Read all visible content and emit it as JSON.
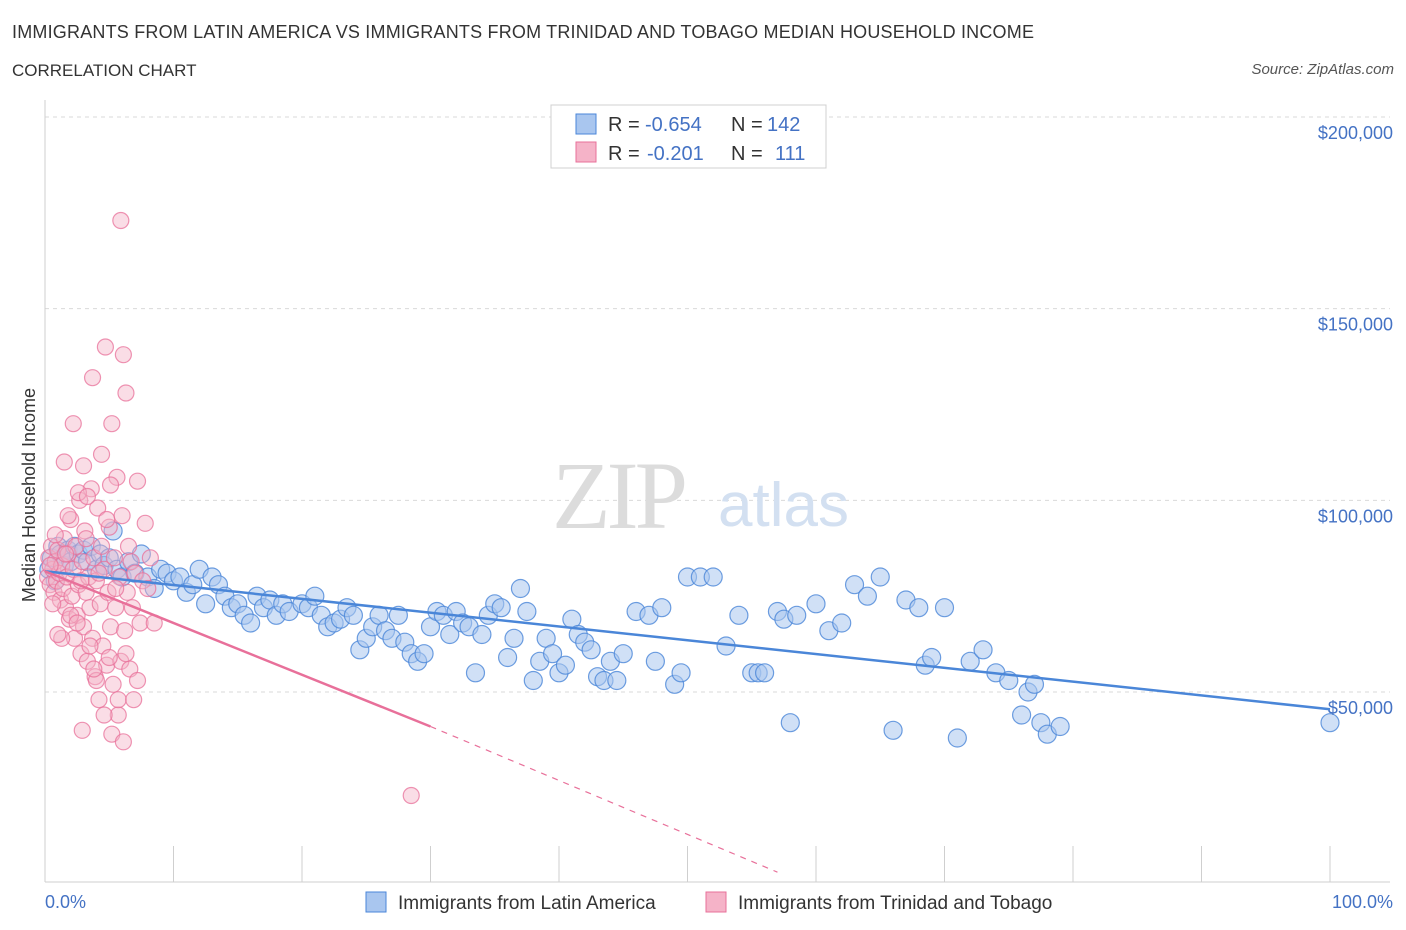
{
  "header": {
    "title": "IMMIGRANTS FROM LATIN AMERICA VS IMMIGRANTS FROM TRINIDAD AND TOBAGO MEDIAN HOUSEHOLD INCOME",
    "subtitle": "CORRELATION CHART",
    "source": "Source: ZipAtlas.com"
  },
  "watermark": {
    "zip": "ZIP",
    "atlas": "atlas"
  },
  "colors": {
    "blue": "#4a86d8",
    "blue_fill": "#a9c6ef",
    "pink": "#e8709a",
    "pink_fill": "#f5b3c8",
    "axis_text": "#4472c4",
    "grid": "#d9d9d9"
  },
  "legend": {
    "rows": [
      {
        "r_label": "R = ",
        "r_value": "-0.654",
        "n_label": "N = ",
        "n_value": "142"
      },
      {
        "r_label": "R = ",
        "r_value": "-0.201",
        "n_label": "N = ",
        "n_value": "111"
      }
    ]
  },
  "chart_data": {
    "type": "scatter",
    "title": "IMMIGRANTS FROM LATIN AMERICA VS IMMIGRANTS FROM TRINIDAD AND TOBAGO MEDIAN HOUSEHOLD INCOME",
    "xlabel": "",
    "ylabel": "Median Household Income",
    "xlim": [
      0,
      100
    ],
    "ylim": [
      0,
      200000
    ],
    "x_tick_labels": [
      "0.0%",
      "100.0%"
    ],
    "y_ticks": [
      50000,
      100000,
      150000,
      200000
    ],
    "y_tick_labels": [
      "$50,000",
      "$100,000",
      "$150,000",
      "$200,000"
    ],
    "grid": "horizontal dashed",
    "legend_position": "top-center",
    "series": [
      {
        "name": "Immigrants from Latin America",
        "color": "#4a86d8",
        "trend": {
          "x": [
            0,
            100
          ],
          "y": [
            81500,
            45500
          ],
          "style": "solid"
        },
        "points": [
          [
            0.3,
            82000
          ],
          [
            0.5,
            85000
          ],
          [
            0.8,
            79000
          ],
          [
            1.0,
            88000
          ],
          [
            1.2,
            86000
          ],
          [
            1.5,
            83000
          ],
          [
            1.8,
            87000
          ],
          [
            2.0,
            84000
          ],
          [
            2.3,
            88000
          ],
          [
            2.6,
            86000
          ],
          [
            3.0,
            87000
          ],
          [
            3.3,
            84000
          ],
          [
            3.6,
            88000
          ],
          [
            4.0,
            82000
          ],
          [
            4.3,
            86000
          ],
          [
            4.6,
            83000
          ],
          [
            5.0,
            85000
          ],
          [
            5.3,
            92000
          ],
          [
            5.6,
            82000
          ],
          [
            6.0,
            80000
          ],
          [
            6.5,
            84000
          ],
          [
            7.0,
            81000
          ],
          [
            7.5,
            86000
          ],
          [
            8.0,
            80000
          ],
          [
            8.5,
            77000
          ],
          [
            9.0,
            82000
          ],
          [
            9.5,
            81000
          ],
          [
            10.0,
            79000
          ],
          [
            10.5,
            80000
          ],
          [
            11.0,
            76000
          ],
          [
            11.5,
            78000
          ],
          [
            12.0,
            82000
          ],
          [
            12.5,
            73000
          ],
          [
            13.0,
            80000
          ],
          [
            13.5,
            78000
          ],
          [
            14.0,
            75000
          ],
          [
            14.5,
            72000
          ],
          [
            15.0,
            73000
          ],
          [
            15.5,
            70000
          ],
          [
            16.0,
            68000
          ],
          [
            16.5,
            75000
          ],
          [
            17.0,
            72000
          ],
          [
            17.5,
            74000
          ],
          [
            18.0,
            70000
          ],
          [
            18.5,
            73000
          ],
          [
            19.0,
            71000
          ],
          [
            20.0,
            73000
          ],
          [
            20.5,
            72000
          ],
          [
            21.0,
            75000
          ],
          [
            21.5,
            70000
          ],
          [
            22.0,
            67000
          ],
          [
            22.5,
            68000
          ],
          [
            23.0,
            69000
          ],
          [
            23.5,
            72000
          ],
          [
            24.0,
            70000
          ],
          [
            24.5,
            61000
          ],
          [
            25.0,
            64000
          ],
          [
            25.5,
            67000
          ],
          [
            26.0,
            70000
          ],
          [
            26.5,
            66000
          ],
          [
            27.0,
            64000
          ],
          [
            27.5,
            70000
          ],
          [
            28.0,
            63000
          ],
          [
            28.5,
            60000
          ],
          [
            29.0,
            58000
          ],
          [
            29.5,
            60000
          ],
          [
            30.0,
            67000
          ],
          [
            30.5,
            71000
          ],
          [
            31.0,
            70000
          ],
          [
            31.5,
            65000
          ],
          [
            32.0,
            71000
          ],
          [
            32.5,
            68000
          ],
          [
            33.0,
            67000
          ],
          [
            33.5,
            55000
          ],
          [
            34.0,
            65000
          ],
          [
            34.5,
            70000
          ],
          [
            35.0,
            73000
          ],
          [
            35.5,
            72000
          ],
          [
            36.0,
            59000
          ],
          [
            36.5,
            64000
          ],
          [
            37.0,
            77000
          ],
          [
            37.5,
            71000
          ],
          [
            38.0,
            53000
          ],
          [
            38.5,
            58000
          ],
          [
            39.0,
            64000
          ],
          [
            39.5,
            60000
          ],
          [
            40.0,
            55000
          ],
          [
            40.5,
            57000
          ],
          [
            41.0,
            69000
          ],
          [
            41.5,
            65000
          ],
          [
            42.0,
            63000
          ],
          [
            42.5,
            61000
          ],
          [
            43.0,
            54000
          ],
          [
            43.5,
            53000
          ],
          [
            44.0,
            58000
          ],
          [
            44.5,
            53000
          ],
          [
            45.0,
            60000
          ],
          [
            46.0,
            71000
          ],
          [
            47.0,
            70000
          ],
          [
            47.5,
            58000
          ],
          [
            48.0,
            72000
          ],
          [
            49.0,
            52000
          ],
          [
            49.5,
            55000
          ],
          [
            50.0,
            80000
          ],
          [
            51.0,
            80000
          ],
          [
            52.0,
            80000
          ],
          [
            53.0,
            62000
          ],
          [
            54.0,
            70000
          ],
          [
            55.0,
            55000
          ],
          [
            55.5,
            55000
          ],
          [
            56.0,
            55000
          ],
          [
            57.0,
            71000
          ],
          [
            57.5,
            69000
          ],
          [
            58.0,
            42000
          ],
          [
            58.5,
            70000
          ],
          [
            60.0,
            73000
          ],
          [
            61.0,
            66000
          ],
          [
            62.0,
            68000
          ],
          [
            63.0,
            78000
          ],
          [
            64.0,
            75000
          ],
          [
            65.0,
            80000
          ],
          [
            66.0,
            40000
          ],
          [
            67.0,
            74000
          ],
          [
            68.0,
            72000
          ],
          [
            68.5,
            57000
          ],
          [
            69.0,
            59000
          ],
          [
            70.0,
            72000
          ],
          [
            71.0,
            38000
          ],
          [
            72.0,
            58000
          ],
          [
            73.0,
            61000
          ],
          [
            74.0,
            55000
          ],
          [
            75.0,
            53000
          ],
          [
            76.0,
            44000
          ],
          [
            76.5,
            50000
          ],
          [
            77.0,
            52000
          ],
          [
            77.5,
            42000
          ],
          [
            78.0,
            39000
          ],
          [
            79.0,
            41000
          ],
          [
            100.0,
            42000
          ]
        ]
      },
      {
        "name": "Immigrants from Trinidad and Tobago",
        "color": "#e8709a",
        "trend": {
          "x": [
            0,
            30,
            57
          ],
          "y": [
            81500,
            41000,
            3000
          ],
          "style": "solid then dashed after x=30"
        },
        "points": [
          [
            0.2,
            80000
          ],
          [
            0.3,
            85000
          ],
          [
            0.4,
            78000
          ],
          [
            0.5,
            88000
          ],
          [
            0.6,
            82000
          ],
          [
            0.7,
            76000
          ],
          [
            0.8,
            84000
          ],
          [
            0.9,
            79000
          ],
          [
            1.0,
            87000
          ],
          [
            1.1,
            81000
          ],
          [
            1.2,
            74000
          ],
          [
            1.3,
            83000
          ],
          [
            1.4,
            77000
          ],
          [
            1.5,
            90000
          ],
          [
            1.6,
            72000
          ],
          [
            1.7,
            80000
          ],
          [
            1.8,
            86000
          ],
          [
            1.9,
            69000
          ],
          [
            2.0,
            95000
          ],
          [
            2.1,
            75000
          ],
          [
            2.2,
            82000
          ],
          [
            2.3,
            64000
          ],
          [
            2.4,
            88000
          ],
          [
            2.5,
            70000
          ],
          [
            2.6,
            78000
          ],
          [
            2.7,
            100000
          ],
          [
            2.8,
            60000
          ],
          [
            2.9,
            84000
          ],
          [
            3.0,
            67000
          ],
          [
            3.1,
            92000
          ],
          [
            3.2,
            76000
          ],
          [
            3.3,
            58000
          ],
          [
            3.4,
            80000
          ],
          [
            3.5,
            72000
          ],
          [
            3.6,
            103000
          ],
          [
            3.7,
            64000
          ],
          [
            3.8,
            85000
          ],
          [
            3.9,
            54000
          ],
          [
            4.0,
            79000
          ],
          [
            4.1,
            98000
          ],
          [
            4.2,
            48000
          ],
          [
            4.3,
            73000
          ],
          [
            4.4,
            88000
          ],
          [
            4.5,
            62000
          ],
          [
            4.6,
            82000
          ],
          [
            4.7,
            140000
          ],
          [
            4.8,
            57000
          ],
          [
            4.9,
            76000
          ],
          [
            5.0,
            93000
          ],
          [
            5.1,
            67000
          ],
          [
            5.2,
            120000
          ],
          [
            5.3,
            52000
          ],
          [
            5.4,
            85000
          ],
          [
            5.5,
            72000
          ],
          [
            5.6,
            106000
          ],
          [
            5.7,
            44000
          ],
          [
            5.8,
            80000
          ],
          [
            5.9,
            58000
          ],
          [
            6.0,
            96000
          ],
          [
            6.1,
            138000
          ],
          [
            6.2,
            66000
          ],
          [
            6.3,
            128000
          ],
          [
            6.4,
            76000
          ],
          [
            6.5,
            88000
          ],
          [
            6.6,
            56000
          ],
          [
            6.7,
            84000
          ],
          [
            6.8,
            72000
          ],
          [
            7.0,
            81000
          ],
          [
            7.2,
            105000
          ],
          [
            7.4,
            68000
          ],
          [
            7.6,
            79000
          ],
          [
            7.8,
            94000
          ],
          [
            8.0,
            77000
          ],
          [
            8.2,
            85000
          ],
          [
            8.5,
            68000
          ],
          [
            3.7,
            132000
          ],
          [
            1.5,
            110000
          ],
          [
            2.2,
            120000
          ],
          [
            3.0,
            109000
          ],
          [
            4.4,
            112000
          ],
          [
            5.1,
            104000
          ],
          [
            1.8,
            96000
          ],
          [
            2.6,
            102000
          ],
          [
            3.3,
            101000
          ],
          [
            0.8,
            91000
          ],
          [
            1.3,
            64000
          ],
          [
            2.9,
            40000
          ],
          [
            3.5,
            62000
          ],
          [
            4.0,
            53000
          ],
          [
            5.0,
            59000
          ],
          [
            5.7,
            48000
          ],
          [
            4.6,
            44000
          ],
          [
            5.2,
            39000
          ],
          [
            6.1,
            37000
          ],
          [
            2.0,
            70000
          ],
          [
            1.0,
            65000
          ],
          [
            0.6,
            73000
          ],
          [
            3.8,
            56000
          ],
          [
            2.5,
            68000
          ],
          [
            6.9,
            48000
          ],
          [
            7.2,
            53000
          ],
          [
            3.2,
            90000
          ],
          [
            4.8,
            95000
          ],
          [
            1.6,
            86000
          ],
          [
            0.4,
            83000
          ],
          [
            2.8,
            79000
          ],
          [
            4.2,
            81000
          ],
          [
            5.5,
            77000
          ],
          [
            6.3,
            60000
          ],
          [
            28.5,
            23000
          ],
          [
            5.9,
            173000
          ]
        ]
      }
    ]
  },
  "bottom_legend": {
    "items": [
      {
        "label": "Immigrants from Latin America"
      },
      {
        "label": "Immigrants from Trinidad and Tobago"
      }
    ]
  }
}
